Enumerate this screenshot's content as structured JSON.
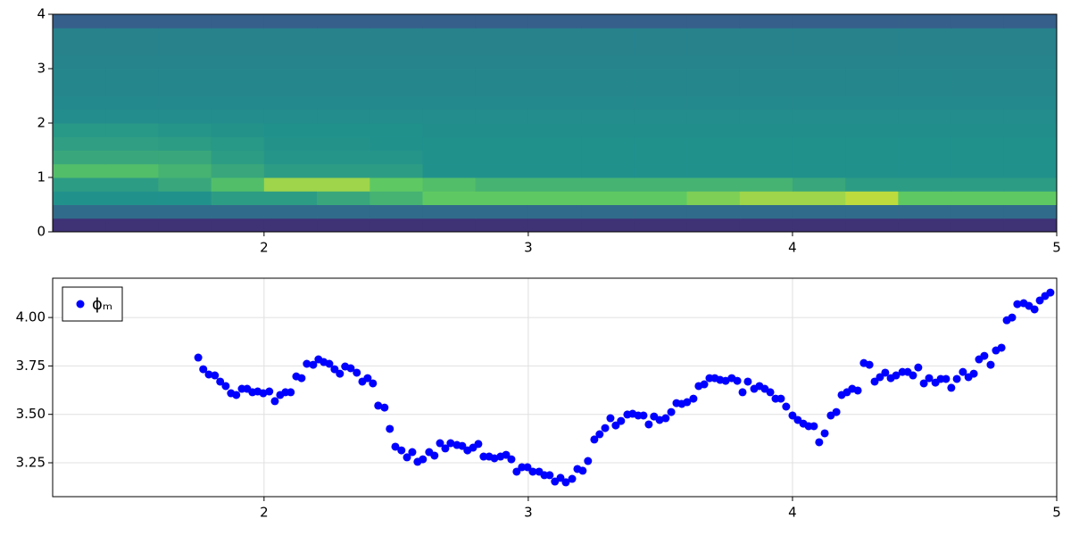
{
  "chart_data": [
    {
      "type": "heatmap",
      "xlim": [
        1.2,
        5
      ],
      "ylim": [
        0,
        4
      ],
      "xticks": [
        2,
        3,
        4,
        5
      ],
      "yticks": [
        0,
        1,
        2,
        3,
        4
      ],
      "xbins": [
        1.2,
        1.4,
        1.6,
        1.8,
        2.0,
        2.2,
        2.4,
        2.6,
        2.8,
        3.0,
        3.2,
        3.4,
        3.6,
        3.8,
        4.0,
        4.2,
        4.4,
        4.6,
        4.8,
        5.0
      ],
      "ybins": [
        0,
        0.25,
        0.5,
        0.75,
        1.0,
        1.25,
        1.5,
        1.75,
        2.0,
        2.25,
        2.5,
        2.75,
        3.0,
        3.25,
        3.5,
        3.75,
        4.0
      ],
      "zlim": [
        0,
        10
      ],
      "colors": [
        "#440154",
        "#3b528b",
        "#21918c",
        "#5ec962",
        "#fde725"
      ],
      "z": [
        [
          1.5,
          1.5,
          1.5,
          1.5,
          1.5,
          1.5,
          1.5,
          1.5,
          1.5,
          1.5,
          1.5,
          1.5,
          1.5,
          1.5,
          1.5,
          1.5,
          1.5,
          1.5,
          1.5
        ],
        [
          3.5,
          3.5,
          3.5,
          3.5,
          3.5,
          3.5,
          3.5,
          3.5,
          3.5,
          3.5,
          3.5,
          3.5,
          3.5,
          3.5,
          3.5,
          3.5,
          3.5,
          3.5,
          3.5
        ],
        [
          5,
          5,
          5,
          5.5,
          5.5,
          6,
          6.5,
          7.5,
          7.5,
          7.5,
          7.5,
          7.5,
          8,
          8.5,
          8.5,
          9,
          7.5,
          7.5,
          7.5
        ],
        [
          5.5,
          5.5,
          6,
          7,
          8.5,
          8.5,
          7.5,
          7,
          6.5,
          6.5,
          6.5,
          6.5,
          6.5,
          6.5,
          6,
          5.5,
          5.5,
          5.5,
          5.5
        ],
        [
          7,
          7,
          6.5,
          6,
          5.5,
          5.5,
          5.5,
          5,
          5,
          5,
          5,
          5,
          5,
          5,
          5,
          5,
          5,
          5,
          5
        ],
        [
          6,
          6,
          6,
          5.5,
          5.2,
          5.2,
          5.2,
          5,
          5,
          5,
          5,
          5,
          5,
          5,
          5,
          5,
          5,
          5,
          5
        ],
        [
          5.6,
          5.6,
          5.5,
          5.3,
          5.1,
          5.1,
          5,
          5,
          5,
          5,
          5,
          5,
          5,
          5,
          5,
          5,
          5,
          5,
          5
        ],
        [
          5.3,
          5.3,
          5.2,
          5.1,
          5,
          5,
          5,
          4.9,
          4.9,
          4.9,
          4.9,
          4.9,
          4.9,
          4.9,
          4.9,
          4.9,
          4.9,
          4.9,
          4.9
        ],
        [
          4.8,
          4.8,
          4.8,
          4.8,
          4.8,
          4.8,
          4.8,
          4.8,
          4.8,
          4.8,
          4.8,
          4.8,
          4.8,
          4.8,
          4.8,
          4.8,
          4.8,
          4.8,
          4.8
        ],
        [
          4.7,
          4.7,
          4.7,
          4.7,
          4.7,
          4.7,
          4.7,
          4.7,
          4.7,
          4.7,
          4.7,
          4.7,
          4.7,
          4.7,
          4.7,
          4.7,
          4.7,
          4.7,
          4.7
        ],
        [
          4.6,
          4.6,
          4.6,
          4.6,
          4.6,
          4.6,
          4.6,
          4.6,
          4.6,
          4.6,
          4.6,
          4.6,
          4.6,
          4.6,
          4.6,
          4.6,
          4.6,
          4.6,
          4.6
        ],
        [
          4.6,
          4.6,
          4.6,
          4.6,
          4.6,
          4.6,
          4.6,
          4.6,
          4.6,
          4.6,
          4.6,
          4.6,
          4.6,
          4.6,
          4.6,
          4.6,
          4.6,
          4.6,
          4.6
        ],
        [
          4.5,
          4.5,
          4.5,
          4.5,
          4.5,
          4.5,
          4.5,
          4.5,
          4.5,
          4.5,
          4.5,
          4.5,
          4.5,
          4.5,
          4.5,
          4.5,
          4.5,
          4.5,
          4.5
        ],
        [
          4.4,
          4.4,
          4.4,
          4.4,
          4.4,
          4.4,
          4.4,
          4.4,
          4.4,
          4.4,
          4.4,
          4.4,
          4.4,
          4.4,
          4.4,
          4.4,
          4.4,
          4.4,
          4.4
        ],
        [
          4.4,
          4.4,
          4.4,
          4.4,
          4.4,
          4.4,
          4.4,
          4.4,
          4.4,
          4.4,
          4.4,
          4.4,
          4.4,
          4.4,
          4.4,
          4.4,
          4.4,
          4.4,
          4.4
        ],
        [
          3,
          3,
          3,
          3,
          3,
          3,
          3,
          3,
          3,
          3,
          3,
          3,
          3,
          3,
          3,
          3,
          3,
          3,
          3
        ]
      ]
    },
    {
      "type": "scatter",
      "xlim": [
        1.2,
        5
      ],
      "ylim": [
        3.075,
        4.203
      ],
      "xticks": [
        2,
        3,
        4,
        5
      ],
      "yticks": [
        {
          "value": 3.25,
          "label": "3.25"
        },
        {
          "value": 3.5,
          "label": "3.50"
        },
        {
          "value": 3.75,
          "label": "3.75"
        },
        {
          "value": 4.0,
          "label": "4.00"
        }
      ],
      "grid": true,
      "legend": "upper left",
      "series": [
        {
          "name": "ϕₘ",
          "color": "#0000ff",
          "x": [
            1.751,
            1.77,
            1.791,
            1.814,
            1.834,
            1.855,
            1.875,
            1.895,
            1.916,
            1.936,
            1.956,
            1.976,
            1.997,
            2.02,
            2.041,
            2.061,
            2.081,
            2.101,
            2.122,
            2.142,
            2.162,
            2.186,
            2.206,
            2.226,
            2.247,
            2.267,
            2.287,
            2.307,
            2.328,
            2.351,
            2.372,
            2.392,
            2.412,
            2.432,
            2.456,
            2.476,
            2.497,
            2.52,
            2.541,
            2.561,
            2.581,
            2.601,
            2.625,
            2.645,
            2.666,
            2.686,
            2.706,
            2.73,
            2.75,
            2.77,
            2.791,
            2.811,
            2.831,
            2.852,
            2.872,
            2.895,
            2.916,
            2.936,
            2.956,
            2.976,
            2.997,
            3.017,
            3.041,
            3.061,
            3.081,
            3.101,
            3.122,
            3.142,
            3.166,
            3.186,
            3.206,
            3.226,
            3.25,
            3.27,
            3.291,
            3.311,
            3.331,
            3.351,
            3.375,
            3.395,
            3.416,
            3.436,
            3.456,
            3.476,
            3.497,
            3.52,
            3.541,
            3.561,
            3.581,
            3.601,
            3.625,
            3.645,
            3.666,
            3.686,
            3.706,
            3.726,
            3.747,
            3.77,
            3.791,
            3.811,
            3.831,
            3.855,
            3.875,
            3.895,
            3.916,
            3.936,
            3.956,
            3.976,
            4.0,
            4.02,
            4.041,
            4.061,
            4.081,
            4.101,
            4.122,
            4.145,
            4.166,
            4.186,
            4.206,
            4.226,
            4.247,
            4.27,
            4.291,
            4.311,
            4.331,
            4.351,
            4.372,
            4.392,
            4.416,
            4.436,
            4.456,
            4.476,
            4.497,
            4.517,
            4.541,
            4.561,
            4.581,
            4.601,
            4.622,
            4.645,
            4.666,
            4.686,
            4.706,
            4.726,
            4.75,
            4.77,
            4.791,
            4.811,
            4.831,
            4.851,
            4.875,
            4.895,
            4.916,
            4.936,
            4.956,
            4.976
          ],
          "values": [
            3.793,
            3.733,
            3.706,
            3.701,
            3.669,
            3.646,
            3.609,
            3.6,
            3.632,
            3.632,
            3.614,
            3.618,
            3.609,
            3.618,
            3.568,
            3.6,
            3.614,
            3.614,
            3.696,
            3.687,
            3.761,
            3.756,
            3.784,
            3.77,
            3.761,
            3.733,
            3.71,
            3.747,
            3.738,
            3.715,
            3.669,
            3.687,
            3.66,
            3.545,
            3.535,
            3.425,
            3.333,
            3.314,
            3.278,
            3.305,
            3.255,
            3.268,
            3.305,
            3.287,
            3.351,
            3.324,
            3.351,
            3.342,
            3.337,
            3.314,
            3.328,
            3.347,
            3.282,
            3.282,
            3.273,
            3.282,
            3.291,
            3.268,
            3.204,
            3.227,
            3.227,
            3.204,
            3.204,
            3.186,
            3.186,
            3.153,
            3.172,
            3.149,
            3.167,
            3.218,
            3.209,
            3.259,
            3.37,
            3.397,
            3.429,
            3.48,
            3.443,
            3.466,
            3.499,
            3.503,
            3.494,
            3.494,
            3.448,
            3.489,
            3.471,
            3.48,
            3.512,
            3.558,
            3.554,
            3.563,
            3.581,
            3.646,
            3.655,
            3.687,
            3.687,
            3.678,
            3.673,
            3.687,
            3.673,
            3.614,
            3.669,
            3.632,
            3.646,
            3.632,
            3.614,
            3.581,
            3.581,
            3.54,
            3.494,
            3.471,
            3.452,
            3.439,
            3.439,
            3.356,
            3.402,
            3.494,
            3.512,
            3.6,
            3.614,
            3.632,
            3.623,
            3.765,
            3.756,
            3.669,
            3.692,
            3.715,
            3.687,
            3.701,
            3.719,
            3.719,
            3.701,
            3.742,
            3.66,
            3.687,
            3.664,
            3.683,
            3.683,
            3.637,
            3.683,
            3.719,
            3.692,
            3.71,
            3.784,
            3.802,
            3.756,
            3.83,
            3.844,
            3.986,
            4.0,
            4.069,
            4.074,
            4.06,
            4.042,
            4.088,
            4.111,
            4.129
          ]
        }
      ]
    }
  ]
}
